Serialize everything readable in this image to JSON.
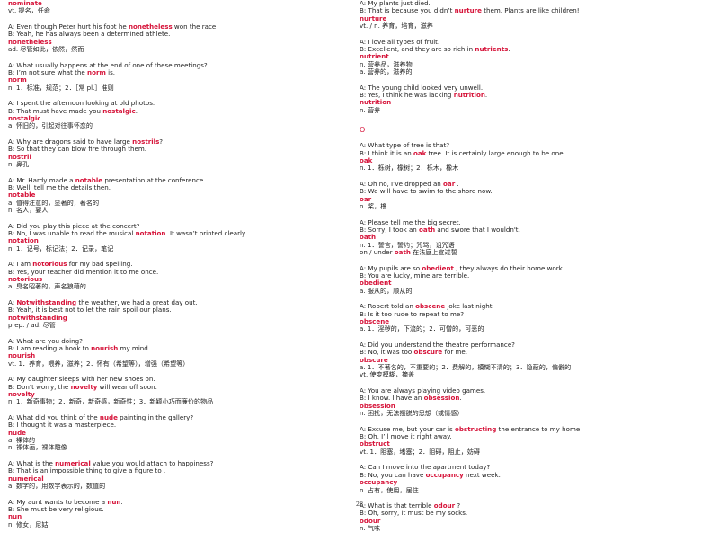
{
  "left": {
    "top_word": "nominate",
    "top_def": "vt.   提名，任命",
    "entries": [
      {
        "a_pre": "A: Even though Peter hurt his foot he ",
        "a_word": "nonetheless",
        "a_post": " won the race.",
        "b_pre": "B: Yeah, he has always been a determined athlete.",
        "b_word": "",
        "b_post": "",
        "head": "nonetheless",
        "def": "ad.   尽管如此，依然，然而"
      },
      {
        "a_pre": "A: What usually happens at the end of one of these meetings?",
        "a_word": "",
        "a_post": "",
        "b_pre": "B: I’m not sure what the ",
        "b_word": "norm",
        "b_post": " is.",
        "head": "norm",
        "def": "n.   1．标准，规范；2．［常 pl.］准则"
      },
      {
        "a_pre": "A: I spent the afternoon looking at old photos.",
        "a_word": "",
        "a_post": "",
        "b_pre": "B: That must have made you ",
        "b_word": "nostalgic",
        "b_post": ".",
        "head": "nostalgic",
        "def": "a. 怀旧的，引起对往事怀恋的"
      },
      {
        "a_pre": "A: Why are dragons said to have large ",
        "a_word": "nostrils",
        "a_post": "?",
        "b_pre": "B: So that they can blow fire through them.",
        "b_word": "",
        "b_post": "",
        "head": "nostril",
        "def": "n.   鼻孔"
      },
      {
        "a_pre": "A: Mr. Hardy made a ",
        "a_word": "notable",
        "a_post": " presentation at the conference.",
        "b_pre": "B: Well, tell me the details then.",
        "b_word": "",
        "b_post": "",
        "head": "notable",
        "def": "a.   值得注意的，显著的，著名的",
        "def2": "n.   名人，要人"
      },
      {
        "a_pre": "A: Did you play this piece at the concert?",
        "a_word": "",
        "a_post": "",
        "b_pre": "B: No, I was unable to read the musical ",
        "b_word": "notation",
        "b_post": ". It wasn’t printed clearly.",
        "head": "notation",
        "def": "n.   1．记号，标记法；2．记录，笔记"
      },
      {
        "a_pre": "A: I am ",
        "a_word": "notorious",
        "a_post": " for my bad spelling.",
        "b_pre": "B: Yes, your teacher did mention it to me once.",
        "b_word": "",
        "b_post": "",
        "head": "notorious",
        "def": "a.   臭名昭著的，声名狼藉的"
      },
      {
        "a_pre": "A: ",
        "a_word": "Notwithstanding",
        "a_post": " the weather, we had a great day out.",
        "b_pre": "B: Yeah, it is best not to let the rain spoil our plans.",
        "b_word": "",
        "b_post": "",
        "head": "notwithstanding",
        "def": "prep. / ad.   尽管"
      },
      {
        "a_pre": "A: What are you doing?",
        "a_word": "",
        "a_post": "",
        "b_pre": "B: I am reading a book to ",
        "b_word": "nourish",
        "b_post": " my mind.",
        "head": "nourish",
        "def": "vt.   1．养育，喂养，滋养；2．怀有（希望等），增强（希望等）"
      },
      {
        "a_pre": "A: My daughter sleeps with her new shoes on.",
        "a_word": "",
        "a_post": "",
        "b_pre": "B: Don’t worry, the ",
        "b_word": "novelty",
        "b_post": " will wear off soon.",
        "head": "novelty",
        "def": "n.   1．新奇事物；2．新奇，新奇感，新奇性；3．新颖小巧而廉价的物品"
      },
      {
        "a_pre": "A: What did you think of the ",
        "a_word": "nude",
        "a_post": " painting in the gallery?",
        "b_pre": "B: I thought it was a masterpiece.",
        "b_word": "",
        "b_post": "",
        "head": "nude",
        "def": "a.   裸体的",
        "def2": "n.   裸体画，裸体雕像"
      },
      {
        "a_pre": "A: What is the ",
        "a_word": "numerical",
        "a_post": " value you would attach to happiness?",
        "b_pre": "B: That is an impossible thing to give a figure to .",
        "b_word": "",
        "b_post": "",
        "head": "numerical",
        "def": "a.   数字的，用数字表示的，数值的"
      },
      {
        "a_pre": "A: My aunt wants to become a ",
        "a_word": "nun",
        "a_post": ".",
        "b_pre": "B: She must be very religious.",
        "b_word": "",
        "b_post": "",
        "head": "nun",
        "def": "n.   修女，尼姑"
      }
    ]
  },
  "right": {
    "frag_a": "A: My plants just died.",
    "frag_b_pre": "B: That is because you didn’t ",
    "frag_b_word": "nurture",
    "frag_b_post": " them. Plants are like children!",
    "frag_head": "nurture",
    "frag_def": "vt. / n.   养育，培育，滋养",
    "entries1": [
      {
        "a_pre": "A: I love all types of fruit.",
        "a_word": "",
        "a_post": "",
        "b_pre": "B: Excellent, and they are so rich in ",
        "b_word": "nutrients",
        "b_post": ".",
        "head": "nutrient",
        "def": "n. 营养品，滋养物",
        "def2": "a.   营养的，滋养的"
      },
      {
        "a_pre": "A: The young child looked very unwell.",
        "a_word": "",
        "a_post": "",
        "b_pre": "B: Yes, I think he was lacking ",
        "b_word": "nutrition",
        "b_post": ".",
        "head": "nutrition",
        "def": "n.   营养"
      }
    ],
    "section": "O",
    "entries2": [
      {
        "a_pre": "A: What type of tree is that?",
        "a_word": "",
        "a_post": "",
        "b_pre": "B: I think it is an ",
        "b_word": "oak",
        "b_post": " tree. It is certainly large enough to be one.",
        "head": "oak",
        "def": "n.   1．栎树，橡树；2．栎木，橡木"
      },
      {
        "a_pre": "A: Oh no, I’ve dropped an ",
        "a_word": "oar",
        "a_post": " .",
        "b_pre": "B: We will have to swim to the shore now.",
        "b_word": "",
        "b_post": "",
        "head": "oar",
        "def": "n.   桨，橹"
      },
      {
        "a_pre": "A: Please tell me the big secret.",
        "a_word": "",
        "a_post": "",
        "b_pre": "B: Sorry, I took an ",
        "b_word": "oath",
        "b_post": " and swore that I wouldn't.",
        "head": "oath",
        "def": "n.   1．誓言，誓约；咒骂，诅咒语",
        "extra_pre": "on / under ",
        "extra_word": "oath",
        "extra_post": "   在法庭上宣过誓"
      },
      {
        "a_pre": "A: My pupils are so ",
        "a_word": "obedient",
        "a_post": " , they always do their home work.",
        "b_pre": "B: You are lucky, mine are terrible.",
        "b_word": "",
        "b_post": "",
        "head": "obedient",
        "def": "a.   服从的，顺从的"
      },
      {
        "a_pre": "A: Robert told an ",
        "a_word": "obscene",
        "a_post": " joke last night.",
        "b_pre": "B: Is it too rude to repeat to me?",
        "b_word": "",
        "b_post": "",
        "head": "obscene",
        "def": "a.   1．淫秽的，下流的；2．可憎的，可恶的"
      },
      {
        "a_pre": "A: Did you understand the theatre performance?",
        "a_word": "",
        "a_post": "",
        "b_pre": "B: No, it was too ",
        "b_word": "obscure",
        "b_post": " for me.",
        "head": "obscure",
        "def": "a.   1．不著名的，不重要的；2．费解的，模糊不清的；3．隐蔽的，偏僻的",
        "def2": "vt.   使变模糊，掩盖"
      },
      {
        "a_pre": "A: You are always playing video games.",
        "a_word": "",
        "a_post": "",
        "b_pre": "B: I know. I have an ",
        "b_word": "obsession",
        "b_post": ".",
        "head": "obsession",
        "def": "n.   困扰，无法摆脱的思想（或情感）"
      },
      {
        "a_pre": "A: Excuse me, but your car is ",
        "a_word": "obstructing",
        "a_post": " the entrance to my home.",
        "b_pre": "B: Oh, I’ll move it right away.",
        "b_word": "",
        "b_post": "",
        "head": "obstruct",
        "def": "vt.   1．阻塞，堵塞；2．阻碍，阻止，妨碍"
      },
      {
        "a_pre": "A: Can I move into the apartment today?",
        "a_word": "",
        "a_post": "",
        "b_pre": "B: No, you can have ",
        "b_word": "occupancy",
        "b_post": " next week.",
        "head": "occupancy",
        "def": "n.   占有，使用，居住"
      },
      {
        "a_pre": "A: What is that terrible ",
        "a_word": "odour",
        "a_post": " ?",
        "b_pre": "B: Oh, sorry, it must be my socks.",
        "b_word": "",
        "b_post": "",
        "head": "odour",
        "def": "n.   气味"
      }
    ]
  },
  "page_number": "28"
}
